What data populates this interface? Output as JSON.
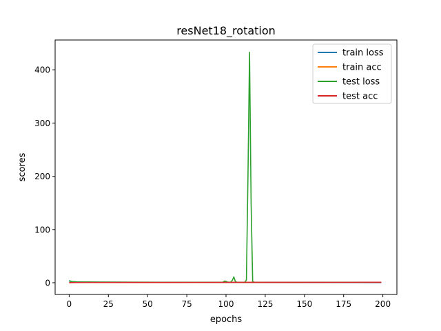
{
  "chart_data": {
    "type": "line",
    "title": "resNet18_rotation",
    "xlabel": "epochs",
    "ylabel": "scores",
    "xlim": [
      -8.95,
      208.95
    ],
    "ylim": [
      -22,
      456
    ],
    "xticks": [
      0,
      25,
      50,
      75,
      100,
      125,
      150,
      175,
      200
    ],
    "yticks": [
      0,
      100,
      200,
      300,
      400
    ],
    "xtick_labels": [
      "0",
      "25",
      "50",
      "75",
      "100",
      "125",
      "150",
      "175",
      "200"
    ],
    "ytick_labels": [
      "0",
      "100",
      "200",
      "300",
      "400"
    ],
    "grid": false,
    "legend_position": "top-right",
    "series": [
      {
        "name": "train loss",
        "color": "#1f77b4",
        "points": [
          [
            0,
            4.4
          ],
          [
            1,
            2.5
          ],
          [
            2,
            2.0
          ],
          [
            5,
            1.6
          ],
          [
            10,
            1.3
          ],
          [
            20,
            1.1
          ],
          [
            40,
            0.9
          ],
          [
            60,
            0.8
          ],
          [
            80,
            0.7
          ],
          [
            100,
            0.6
          ],
          [
            120,
            0.5
          ],
          [
            140,
            0.45
          ],
          [
            160,
            0.4
          ],
          [
            180,
            0.35
          ],
          [
            199,
            0.3
          ]
        ]
      },
      {
        "name": "train acc",
        "color": "#ff7f0e",
        "points": [
          [
            0,
            0.3
          ],
          [
            10,
            0.5
          ],
          [
            40,
            0.6
          ],
          [
            80,
            0.7
          ],
          [
            120,
            0.8
          ],
          [
            160,
            0.85
          ],
          [
            199,
            0.9
          ]
        ]
      },
      {
        "name": "test loss",
        "color": "#2ca02c",
        "points": [
          [
            0,
            3.0
          ],
          [
            2,
            2.0
          ],
          [
            5,
            1.5
          ],
          [
            20,
            1.2
          ],
          [
            60,
            1.0
          ],
          [
            98,
            1.0
          ],
          [
            99,
            3.0
          ],
          [
            100,
            2.5
          ],
          [
            101,
            1.2
          ],
          [
            103,
            1.0
          ],
          [
            104,
            4.5
          ],
          [
            105,
            11.0
          ],
          [
            106,
            2.0
          ],
          [
            107,
            1.0
          ],
          [
            112,
            1.0
          ],
          [
            113,
            5.0
          ],
          [
            114,
            200.0
          ],
          [
            115,
            433.0
          ],
          [
            116,
            150.0
          ],
          [
            117,
            2.0
          ],
          [
            118,
            1.0
          ],
          [
            140,
            1.0
          ],
          [
            170,
            1.0
          ],
          [
            199,
            1.0
          ]
        ]
      },
      {
        "name": "test acc",
        "color": "#d62728",
        "points": [
          [
            0,
            0.3
          ],
          [
            10,
            0.5
          ],
          [
            40,
            0.6
          ],
          [
            80,
            0.65
          ],
          [
            120,
            0.75
          ],
          [
            160,
            0.8
          ],
          [
            199,
            0.85
          ]
        ]
      }
    ]
  }
}
